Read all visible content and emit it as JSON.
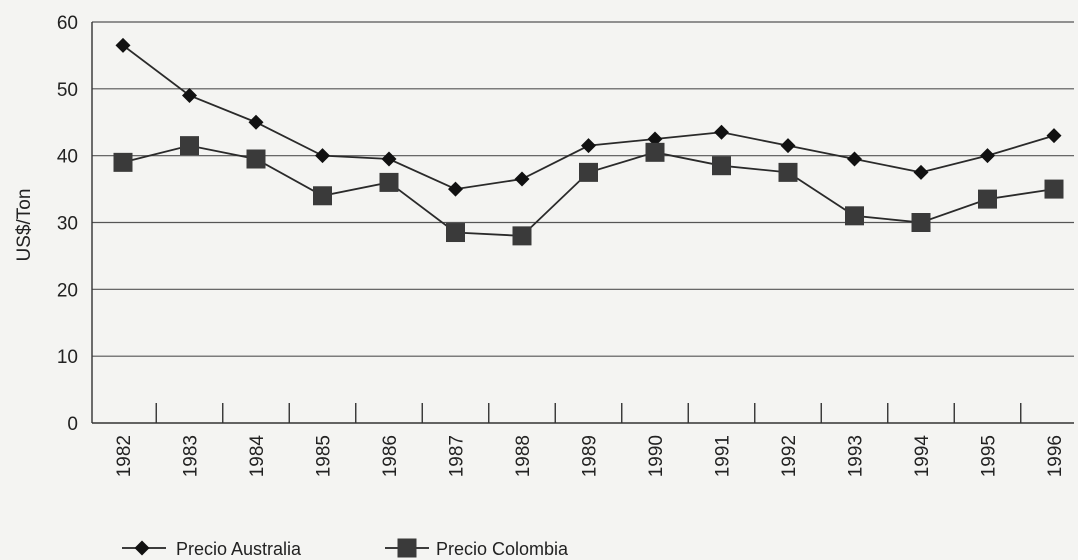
{
  "chart_data": {
    "type": "line",
    "title": "",
    "xlabel": "",
    "ylabel": "US$/Ton",
    "ylim": [
      0,
      60
    ],
    "yticks": [
      0,
      10,
      20,
      30,
      40,
      50,
      60
    ],
    "grid": true,
    "legend_position": "bottom-left",
    "categories": [
      "1982",
      "1983",
      "1984",
      "1985",
      "1986",
      "1987",
      "1988",
      "1989",
      "1990",
      "1991",
      "1992",
      "1993",
      "1994",
      "1995",
      "1996"
    ],
    "series": [
      {
        "name": "Precio Australia",
        "marker": "diamond",
        "color": "#1a1a1a",
        "values": [
          56.5,
          49,
          45,
          40,
          39.5,
          35,
          36.5,
          41.5,
          42.5,
          43.5,
          41.5,
          39.5,
          37.5,
          40,
          43
        ]
      },
      {
        "name": "Precio Colombia",
        "marker": "square",
        "color": "#333333",
        "values": [
          39,
          41.5,
          39.5,
          34,
          36,
          28.5,
          28,
          37.5,
          40.5,
          38.5,
          37.5,
          31,
          30,
          33.5,
          35
        ]
      }
    ]
  }
}
